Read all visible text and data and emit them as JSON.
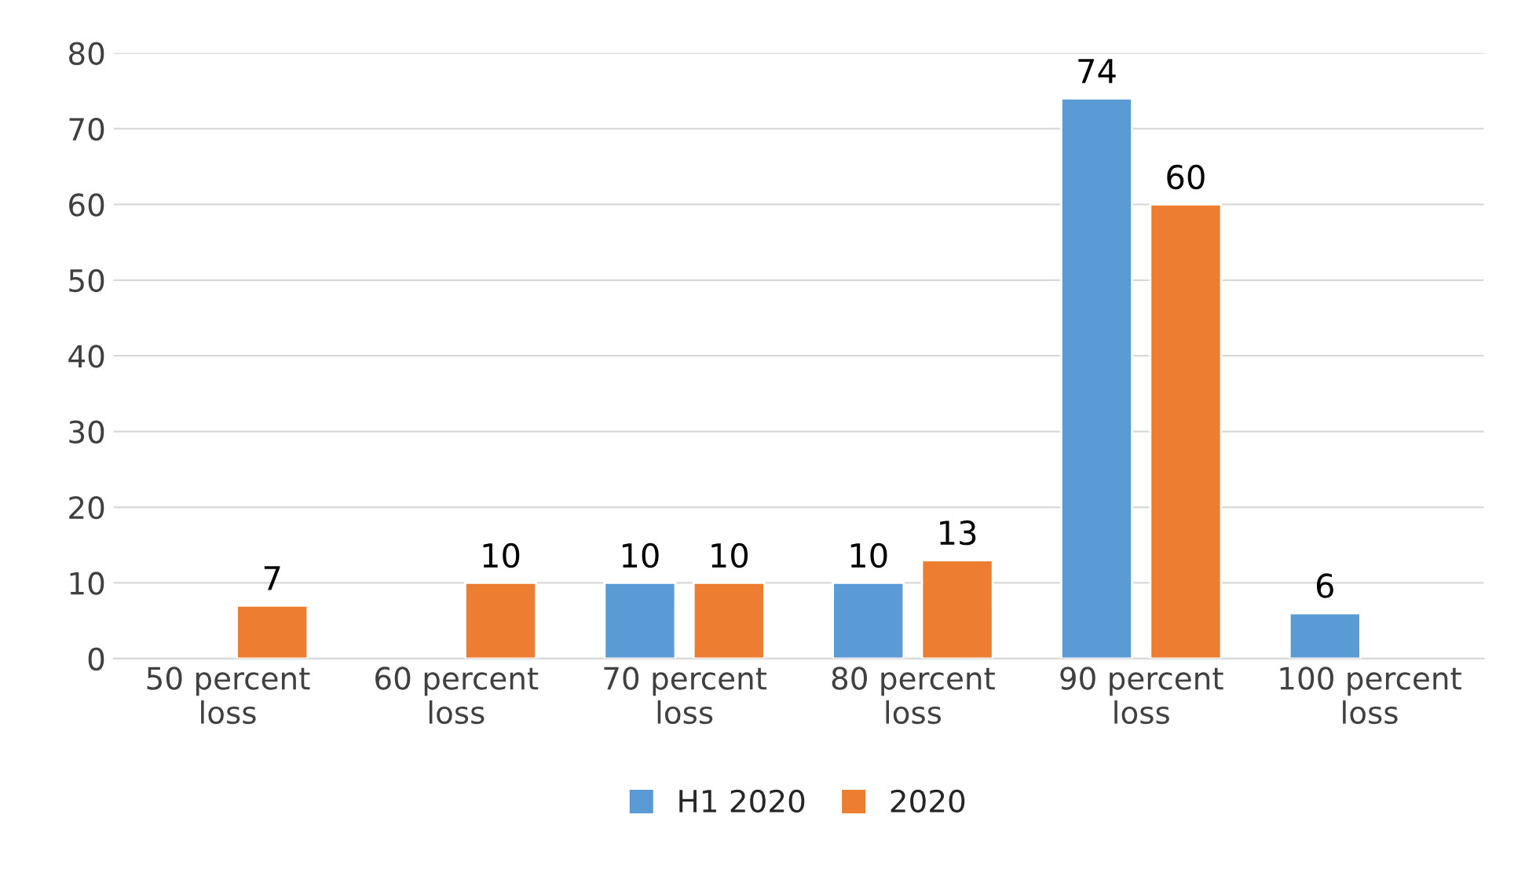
{
  "chart_data": {
    "type": "bar",
    "categories": [
      "50 percent\nloss",
      "60 percent\nloss",
      "70 percent\nloss",
      "80 percent\nloss",
      "90 percent\nloss",
      "100 percent\nloss"
    ],
    "series": [
      {
        "name": "H1 2020",
        "color": "#5b9bd5",
        "values": [
          null,
          null,
          10,
          10,
          74,
          6
        ]
      },
      {
        "name": "2020",
        "color": "#ed7d31",
        "values": [
          7,
          10,
          10,
          13,
          60,
          null
        ]
      }
    ],
    "ylim": [
      0,
      80
    ],
    "yticks": [
      0,
      10,
      20,
      30,
      40,
      50,
      60,
      70,
      80
    ],
    "grid": "y",
    "legend": "bottom",
    "data_labels": true
  }
}
